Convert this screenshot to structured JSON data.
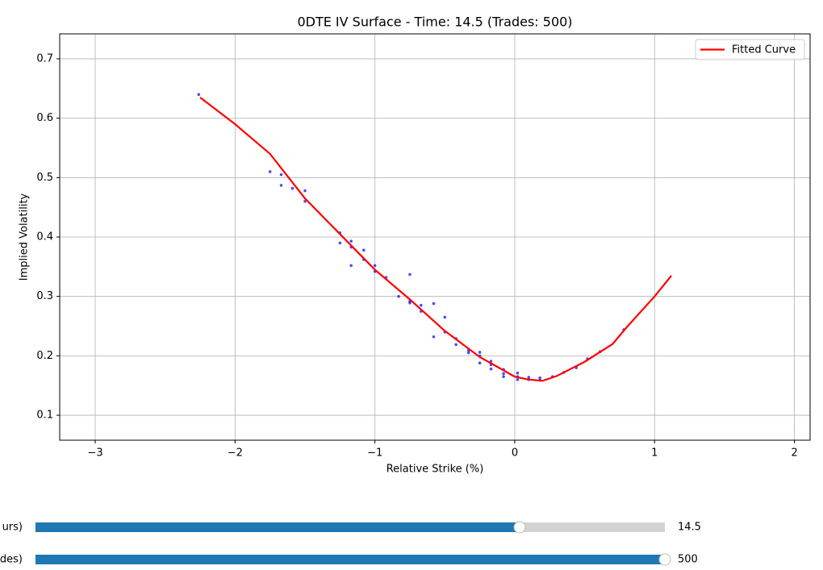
{
  "chart_data": {
    "type": "scatter",
    "title": "0DTE IV Surface - Time: 14.5 (Trades: 500)",
    "x_label": "Relative Strike (%)",
    "y_label": "Implied Volatility",
    "xlim": [
      -3.254,
      2.112
    ],
    "ylim": [
      0.058,
      0.742
    ],
    "xticks": [
      {
        "value": -3,
        "label": "−3"
      },
      {
        "value": -2,
        "label": "−2"
      },
      {
        "value": -1,
        "label": "−1"
      },
      0,
      1,
      2
    ],
    "yticks": [
      0.1,
      0.2,
      0.3,
      0.4,
      0.5,
      0.6,
      0.7
    ],
    "grid": true,
    "legend": "upper right",
    "points": {
      "color": "#0000ff",
      "x": [
        -2.26,
        -1.75,
        -1.67,
        -1.67,
        -1.59,
        -1.5,
        -1.5,
        -1.25,
        -1.25,
        -1.17,
        -1.17,
        -1.17,
        -1.08,
        -1.08,
        -1.0,
        -1.0,
        -0.92,
        -0.83,
        -0.75,
        -0.75,
        -0.75,
        -0.67,
        -0.67,
        -0.58,
        -0.58,
        -0.5,
        -0.5,
        -0.42,
        -0.42,
        -0.33,
        -0.33,
        -0.25,
        -0.25,
        -0.25,
        -0.17,
        -0.17,
        -0.17,
        -0.08,
        -0.08,
        -0.08,
        0.02,
        0.02,
        0.02,
        0.1,
        0.1,
        0.18,
        0.18,
        0.27,
        0.35,
        0.44,
        0.52,
        0.61,
        0.78
      ],
      "y": [
        0.64,
        0.51,
        0.505,
        0.487,
        0.482,
        0.478,
        0.46,
        0.407,
        0.39,
        0.393,
        0.383,
        0.352,
        0.378,
        0.362,
        0.352,
        0.342,
        0.332,
        0.3,
        0.337,
        0.292,
        0.289,
        0.285,
        0.275,
        0.288,
        0.232,
        0.265,
        0.24,
        0.229,
        0.219,
        0.209,
        0.205,
        0.206,
        0.2,
        0.188,
        0.191,
        0.185,
        0.178,
        0.177,
        0.17,
        0.165,
        0.171,
        0.165,
        0.16,
        0.164,
        0.16,
        0.163,
        0.159,
        0.165,
        0.172,
        0.18,
        0.195,
        0.207,
        0.244
      ]
    },
    "series": [
      {
        "name": "Fitted Curve",
        "color": "#ff0000",
        "x": [
          -2.25,
          -2.0,
          -1.75,
          -1.5,
          -1.25,
          -1.0,
          -0.75,
          -0.5,
          -0.25,
          0,
          0.1,
          0.2,
          0.3,
          0.5,
          0.7,
          0.8,
          1.0,
          1.12
        ],
        "values": [
          0.635,
          0.59,
          0.54,
          0.465,
          0.405,
          0.345,
          0.295,
          0.242,
          0.198,
          0.165,
          0.16,
          0.158,
          0.166,
          0.19,
          0.22,
          0.248,
          0.3,
          0.335
        ]
      }
    ],
    "sliders": [
      {
        "label": "urs)",
        "value": 14.5,
        "value_label": "14.5",
        "min": 9.5,
        "max": 16
      },
      {
        "label": "des)",
        "value": 500,
        "value_label": "500",
        "min": 10,
        "max": 500
      }
    ]
  }
}
